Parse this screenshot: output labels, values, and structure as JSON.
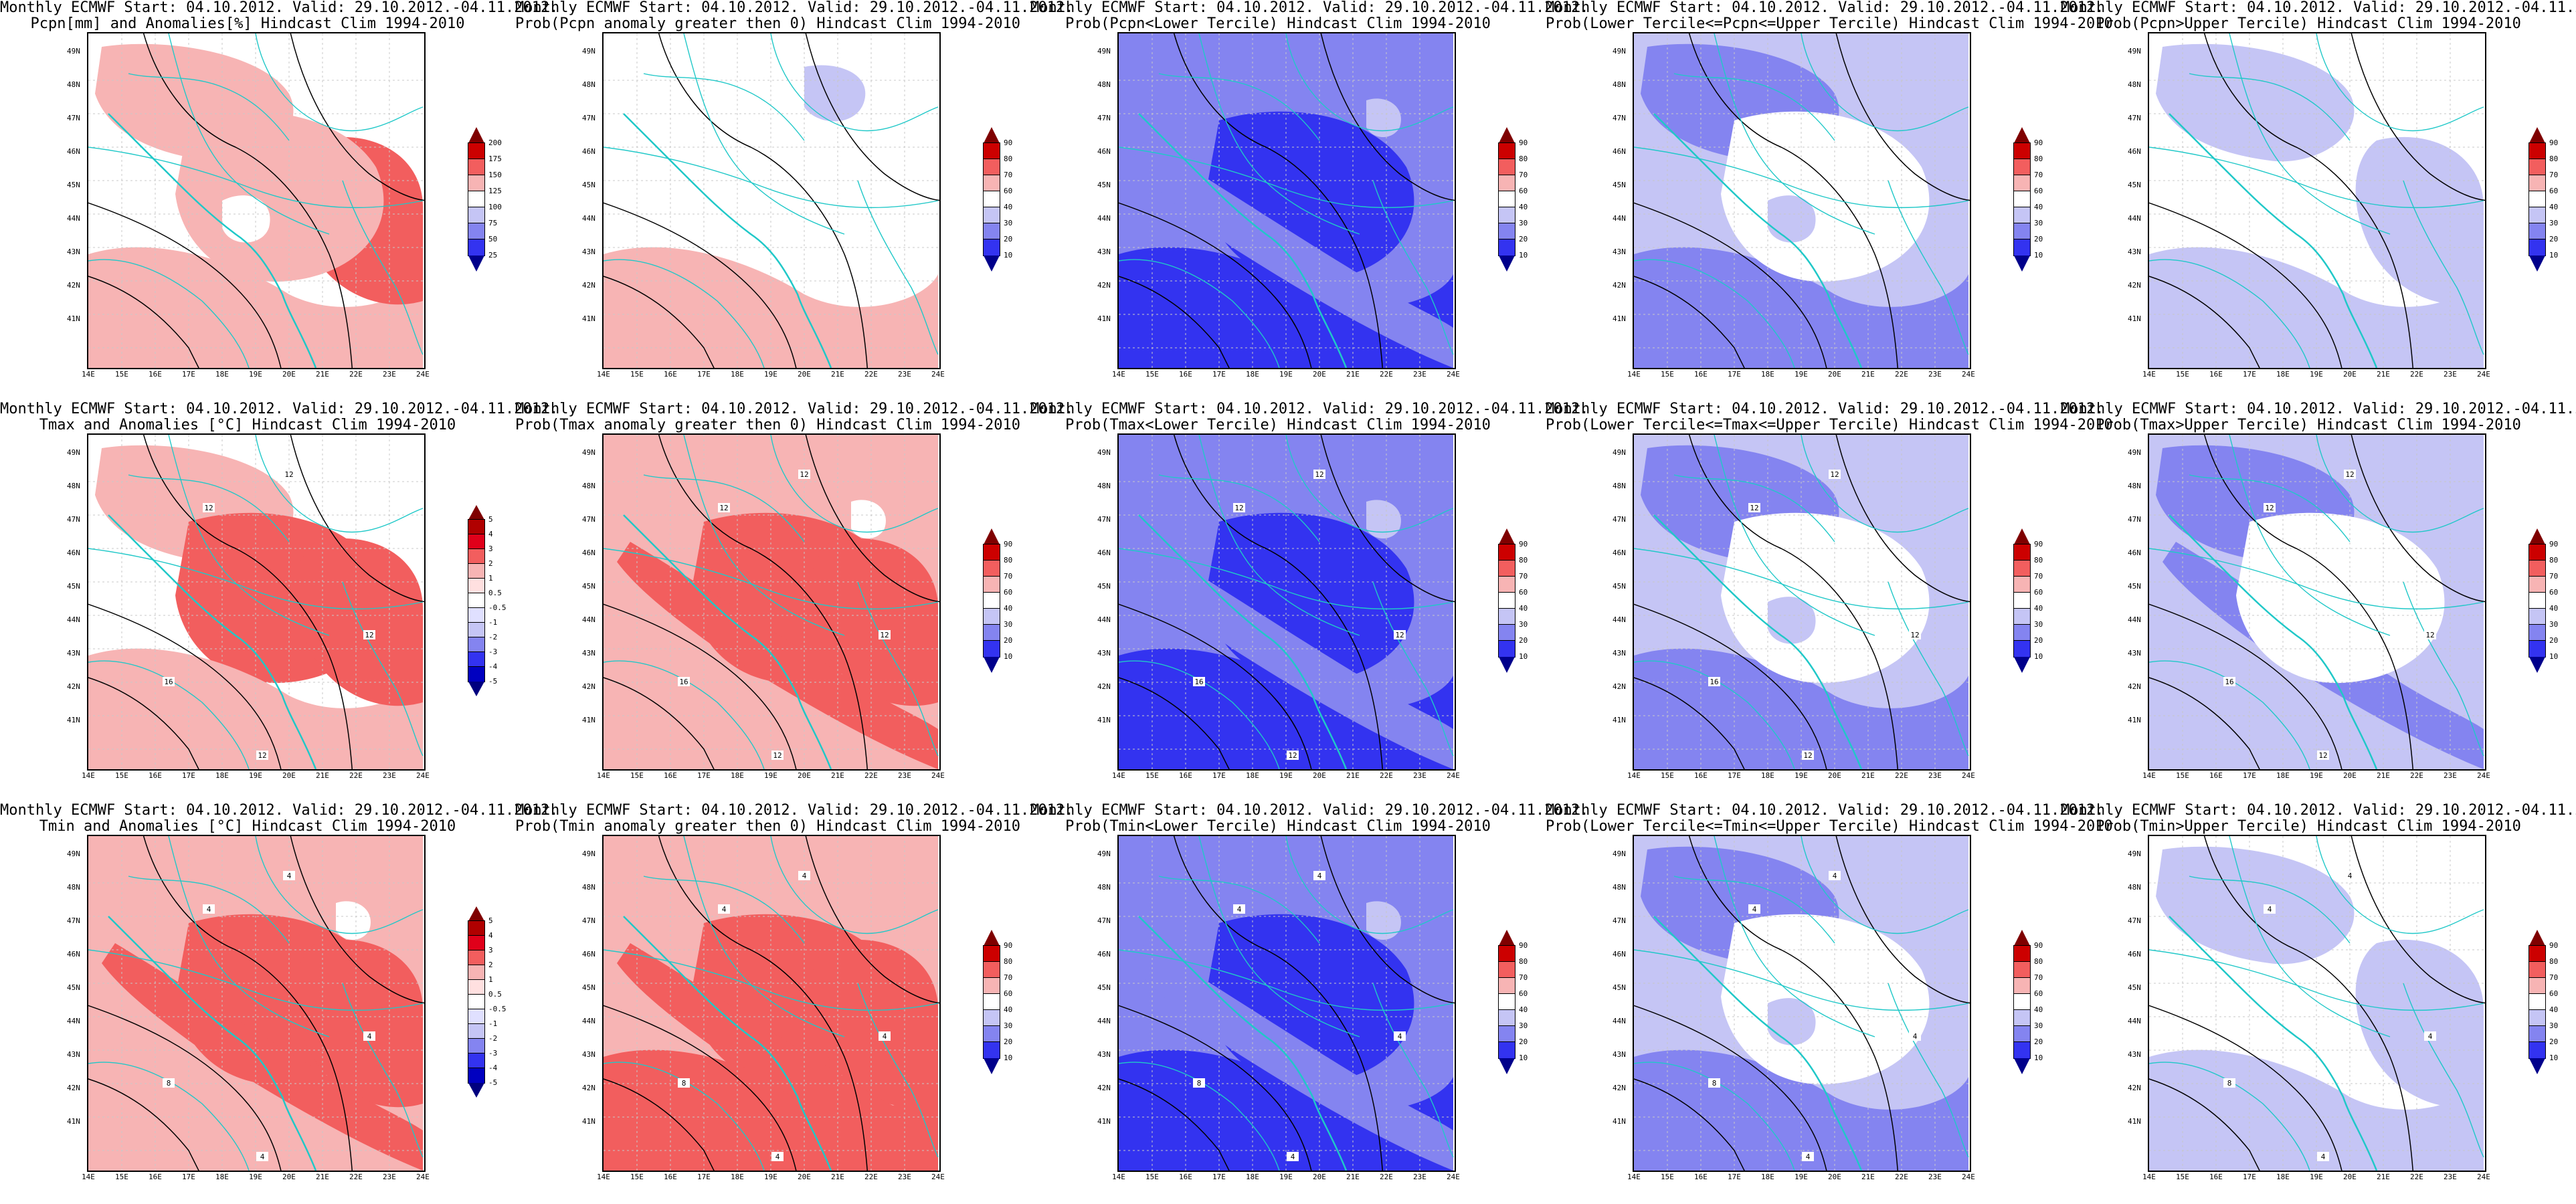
{
  "header_prefix": "Monthly ECMWF Start: 04.10.2012. Valid: 29.10.2012.-04.11.2012.",
  "lat_labels": [
    "49N",
    "48N",
    "47N",
    "46N",
    "45N",
    "44N",
    "43N",
    "42N",
    "41N"
  ],
  "lon_labels": [
    "14E",
    "15E",
    "16E",
    "17E",
    "18E",
    "19E",
    "20E",
    "21E",
    "22E",
    "23E",
    "24E"
  ],
  "colors": {
    "red_dark": "#e0001a",
    "red_mid": "#f25e5e",
    "red_light": "#f7b4b4",
    "blue_light": "#c5c5f5",
    "blue_mid": "#8484f0",
    "blue_dark": "#3333f0",
    "blue_deep": "#0000c0",
    "coast": "#20c8c8",
    "contour": "#000000"
  },
  "colorbars": {
    "pcpn": [
      "200",
      "175",
      "150",
      "125",
      "100",
      "75",
      "50",
      "25"
    ],
    "anom": [
      "5",
      "4",
      "3",
      "2",
      "1",
      "0.5",
      "-0.5",
      "-1",
      "-2",
      "-3",
      "-4",
      "-5"
    ],
    "prob": [
      "90",
      "80",
      "70",
      "60",
      "40",
      "30",
      "20",
      "10"
    ]
  },
  "panels": [
    {
      "id": "pcpn-anom",
      "title": "Pcpn[mm] and Anomalies[%] Hindcast Clim 1994-2010",
      "cbar": "pcpn",
      "style": "pcpn",
      "labels": []
    },
    {
      "id": "pcpn-prob-gt0",
      "title": "Prob(Pcpn anomaly greater then 0) Hindcast Clim 1994-2010",
      "cbar": "prob",
      "style": "pcpn-prob",
      "labels": []
    },
    {
      "id": "pcpn-lower",
      "title": "Prob(Pcpn<Lower Tercile) Hindcast Clim 1994-2010",
      "cbar": "prob",
      "style": "blue-strong",
      "labels": []
    },
    {
      "id": "pcpn-middle",
      "title": "Prob(Lower Tercile<=Pcpn<=Upper Tercile) Hindcast Clim 1994-2010",
      "cbar": "prob",
      "style": "blue-mixed",
      "labels": []
    },
    {
      "id": "pcpn-upper",
      "title": "Prob(Pcpn>Upper Tercile) Hindcast Clim 1994-2010",
      "cbar": "prob",
      "style": "blue-light",
      "labels": []
    },
    {
      "id": "tmax-anom",
      "title": "Tmax and Anomalies [°C] Hindcast Clim 1994-2010",
      "cbar": "anom",
      "style": "red-light",
      "labels": [
        "12",
        "12",
        "12",
        "16",
        "12"
      ]
    },
    {
      "id": "tmax-prob-gt0",
      "title": "Prob(Tmax anomaly greater then 0) Hindcast Clim 1994-2010",
      "cbar": "prob",
      "style": "red-mixed",
      "labels": [
        "12",
        "12",
        "12",
        "16",
        "12"
      ]
    },
    {
      "id": "tmax-lower",
      "title": "Prob(Tmax<Lower Tercile) Hindcast Clim 1994-2010",
      "cbar": "prob",
      "style": "blue-strong",
      "labels": [
        "12",
        "12",
        "12",
        "16",
        "12"
      ]
    },
    {
      "id": "tmax-middle",
      "title": "Prob(Lower Tercile<=Tmax<=Upper Tercile) Hindcast Clim 1994-2010",
      "cbar": "prob",
      "style": "blue-mixed",
      "labels": [
        "12",
        "12",
        "12",
        "16",
        "12"
      ]
    },
    {
      "id": "tmax-upper",
      "title": "Prob(Tmax>Upper Tercile) Hindcast Clim 1994-2010",
      "cbar": "prob",
      "style": "blue-band",
      "labels": [
        "12",
        "12",
        "12",
        "16",
        "12"
      ]
    },
    {
      "id": "tmin-anom",
      "title": "Tmin and Anomalies [°C] Hindcast Clim 1994-2010",
      "cbar": "anom",
      "style": "red-mixed",
      "labels": [
        "4",
        "4",
        "4",
        "8",
        "4"
      ]
    },
    {
      "id": "tmin-prob-gt0",
      "title": "Prob(Tmin anomaly greater then 0) Hindcast Clim 1994-2010",
      "cbar": "prob",
      "style": "red-strong",
      "labels": [
        "4",
        "4",
        "4",
        "8",
        "4"
      ]
    },
    {
      "id": "tmin-lower",
      "title": "Prob(Tmin<Lower Tercile) Hindcast Clim 1994-2010",
      "cbar": "prob",
      "style": "blue-strong",
      "labels": [
        "4",
        "4",
        "4",
        "8",
        "4"
      ]
    },
    {
      "id": "tmin-middle",
      "title": "Prob(Lower Tercile<=Tmin<=Upper Tercile) Hindcast Clim 1994-2010",
      "cbar": "prob",
      "style": "blue-mixed",
      "labels": [
        "4",
        "4",
        "4",
        "8",
        "4"
      ]
    },
    {
      "id": "tmin-upper",
      "title": "Prob(Tmin>Upper Tercile) Hindcast Clim 1994-2010",
      "cbar": "prob",
      "style": "blue-light",
      "labels": [
        "4",
        "4",
        "4",
        "8",
        "4"
      ]
    }
  ]
}
